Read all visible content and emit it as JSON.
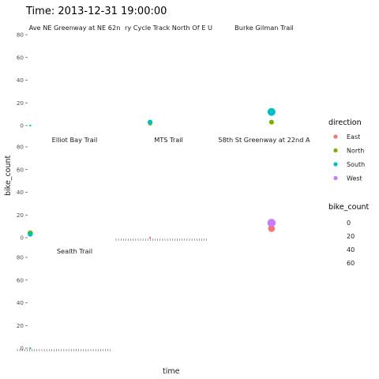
{
  "chart_data": {
    "type": "scatter",
    "title": "Time: 2013-12-31 19:00:00",
    "xlabel": "time",
    "ylabel": "bike_count",
    "ylim": [
      0,
      80
    ],
    "yticks": [
      "0",
      "20",
      "40",
      "60",
      "80"
    ],
    "grid": false,
    "legend_placement": "right",
    "color_legend": {
      "title": "direction",
      "entries": [
        {
          "name": "East",
          "color": "#F8766D"
        },
        {
          "name": "North",
          "color": "#7CAE00"
        },
        {
          "name": "South",
          "color": "#00BFC4"
        },
        {
          "name": "West",
          "color": "#C77CFF"
        }
      ]
    },
    "size_legend": {
      "title": "bike_count",
      "entries": [
        "0",
        "20",
        "40",
        "60"
      ]
    },
    "panels": [
      {
        "title": "Ave NE Greenway at NE 62n",
        "points": [
          {
            "direction": "South",
            "x": 0.02,
            "y": 0
          }
        ]
      },
      {
        "title": "ry Cycle Track North Of E U",
        "points": [
          {
            "direction": "North",
            "x": 0.3,
            "y": 2
          },
          {
            "direction": "South",
            "x": 0.3,
            "y": 3
          }
        ]
      },
      {
        "title": "Burke Gilman Trail",
        "points": [
          {
            "direction": "North",
            "x": 0.58,
            "y": 3
          },
          {
            "direction": "South",
            "x": 0.58,
            "y": 12
          }
        ]
      },
      {
        "title": "Elliot Bay Trail",
        "points": [
          {
            "direction": "North",
            "x": 0.02,
            "y": 4
          },
          {
            "direction": "South",
            "x": 0.02,
            "y": 3
          }
        ]
      },
      {
        "title": "MTS Trail",
        "points": [
          {
            "direction": "East",
            "x": 0.3,
            "y": 0
          }
        ]
      },
      {
        "title": "58th St Greenway at 22nd A",
        "points": [
          {
            "direction": "East",
            "x": 0.58,
            "y": 8
          },
          {
            "direction": "West",
            "x": 0.58,
            "y": 13
          }
        ]
      },
      {
        "title": "Sealth Trail",
        "points": [
          {
            "direction": "South",
            "x": 0.02,
            "y": 0
          }
        ]
      }
    ]
  }
}
